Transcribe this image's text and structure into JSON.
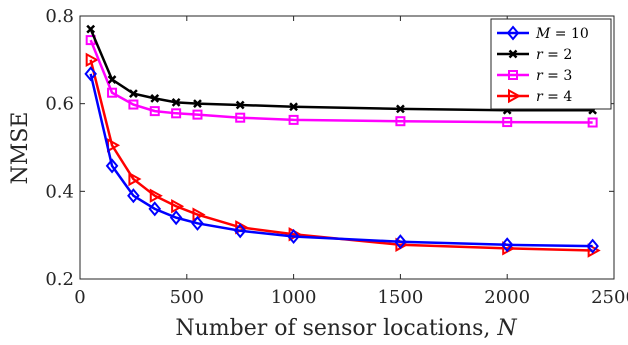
{
  "chart_data": {
    "type": "line",
    "xlabel": "Number of sensor locations, N",
    "ylabel": "NMSE",
    "xlim": [
      0,
      2500
    ],
    "ylim": [
      0.2,
      0.8
    ],
    "xticks": [
      0,
      500,
      1000,
      1500,
      2000,
      2500
    ],
    "yticks": [
      0.2,
      0.4,
      0.6,
      0.8
    ],
    "xtick_labels": [
      "0",
      "500",
      "1000",
      "1500",
      "2000",
      "2500"
    ],
    "ytick_labels": [
      "0.2",
      "0.4",
      "0.6",
      "0.8"
    ],
    "grid": false,
    "legend_position": "top-right",
    "x": [
      50,
      150,
      250,
      350,
      450,
      550,
      750,
      1000,
      1500,
      2000,
      2400
    ],
    "series": [
      {
        "name": "M = 10",
        "color": "#0000ff",
        "marker": "diamond",
        "values": [
          0.668,
          0.458,
          0.39,
          0.36,
          0.34,
          0.327,
          0.31,
          0.297,
          0.285,
          0.278,
          0.275
        ]
      },
      {
        "name": "r = 2",
        "color": "#000000",
        "marker": "x",
        "values": [
          0.77,
          0.655,
          0.623,
          0.612,
          0.603,
          0.6,
          0.597,
          0.593,
          0.588,
          0.585,
          0.585
        ]
      },
      {
        "name": "r = 3",
        "color": "#ff00ff",
        "marker": "square",
        "values": [
          0.745,
          0.625,
          0.598,
          0.583,
          0.578,
          0.575,
          0.568,
          0.563,
          0.56,
          0.558,
          0.557
        ]
      },
      {
        "name": "r = 4",
        "color": "#ff0000",
        "marker": "triangle-right",
        "values": [
          0.7,
          0.505,
          0.428,
          0.39,
          0.366,
          0.347,
          0.318,
          0.302,
          0.278,
          0.27,
          0.265
        ]
      }
    ]
  }
}
